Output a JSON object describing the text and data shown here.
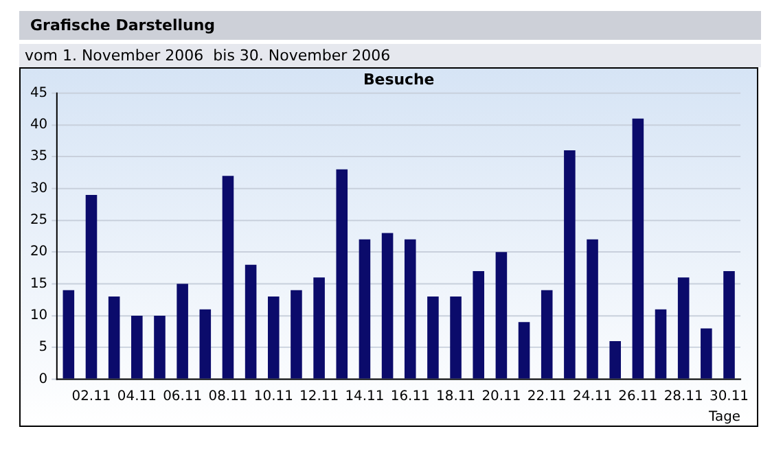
{
  "chart_data": {
    "type": "bar",
    "title": "Grafische Darstellung",
    "subtitle": "vom 1. November 2006  bis 30. November 2006",
    "annotations": [
      "Besuche"
    ],
    "xlabel": "Tage",
    "categories": [
      null,
      "02.11",
      null,
      "04.11",
      null,
      "06.11",
      null,
      "08.11",
      null,
      "10.11",
      null,
      "12.11",
      null,
      "14.11",
      null,
      "16.11",
      null,
      "18.11",
      null,
      "20.11",
      null,
      "22.11",
      null,
      "24.11",
      null,
      "26.11",
      null,
      "28.11",
      null,
      "30.11"
    ],
    "values": [
      14,
      29,
      13,
      10,
      10,
      15,
      11,
      32,
      18,
      13,
      14,
      16,
      33,
      22,
      23,
      22,
      13,
      13,
      17,
      20,
      9,
      14,
      36,
      22,
      6,
      41,
      11,
      16,
      8,
      17
    ],
    "color": "#0b0b6b",
    "ylim": [
      0,
      45
    ],
    "yticks": [
      0,
      5,
      10,
      15,
      20,
      25,
      30,
      35,
      40,
      45
    ],
    "grid": "y",
    "legend": false
  }
}
